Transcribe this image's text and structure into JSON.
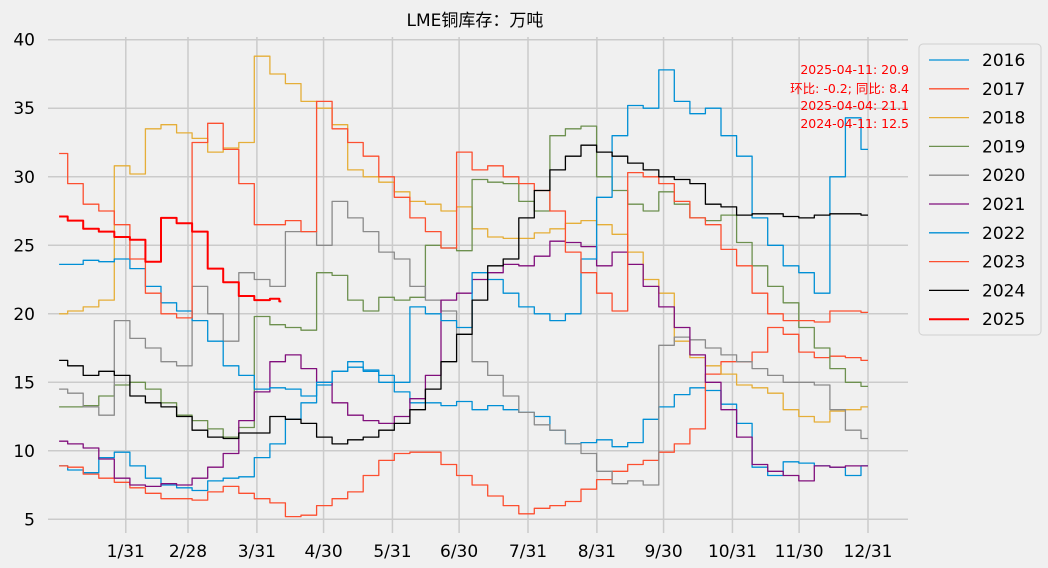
{
  "chart_data": {
    "type": "line",
    "title": "LME铜库存：万吨",
    "xlabel": "",
    "ylabel": "",
    "x_ticks": [
      {
        "label": "1/31",
        "day": 31
      },
      {
        "label": "2/28",
        "day": 59
      },
      {
        "label": "3/31",
        "day": 90
      },
      {
        "label": "4/30",
        "day": 120
      },
      {
        "label": "5/31",
        "day": 151
      },
      {
        "label": "6/30",
        "day": 181
      },
      {
        "label": "7/31",
        "day": 212
      },
      {
        "label": "8/31",
        "day": 243
      },
      {
        "label": "9/30",
        "day": 273
      },
      {
        "label": "10/31",
        "day": 304
      },
      {
        "label": "11/30",
        "day": 334
      },
      {
        "label": "12/31",
        "day": 365
      }
    ],
    "xlim": [
      -4,
      383
    ],
    "ylim": [
      4,
      40.2
    ],
    "y_ticks": [
      5,
      10,
      15,
      20,
      25,
      30,
      35,
      40
    ],
    "grid": true,
    "legend_position": "outside-right",
    "annotations": [
      "2025-04-11: 20.9",
      "环比: -0.2; 同比: 8.4",
      "2025-04-04: 21.1",
      "2024-04-11: 12.5"
    ],
    "annotation_color": "#ff0000",
    "series": [
      {
        "name": "2016",
        "color": "#008fd5",
        "width": 1.3,
        "x": [
          1,
          8,
          15,
          22,
          29,
          36,
          43,
          50,
          57,
          64,
          71,
          78,
          85,
          92,
          99,
          106,
          113,
          120,
          127,
          134,
          141,
          148,
          155,
          162,
          169,
          176,
          183,
          190,
          197,
          204,
          211,
          218,
          225,
          232,
          239,
          246,
          253,
          260,
          267,
          274,
          281,
          288,
          295,
          302,
          309,
          316,
          323,
          330,
          337,
          344,
          351,
          358,
          365
        ],
        "y": [
          8.9,
          8.6,
          8.4,
          9.5,
          9.9,
          8.9,
          8.0,
          7.5,
          7.3,
          7.1,
          7.8,
          8.0,
          8.1,
          9.5,
          10.5,
          12.3,
          13.5,
          14.8,
          15.8,
          16.5,
          15.9,
          15.0,
          14.3,
          13.5,
          13.5,
          13.3,
          13.6,
          13.0,
          13.3,
          13.0,
          12.8,
          12.5,
          11.5,
          10.5,
          10.6,
          10.8,
          10.3,
          10.6,
          12.3,
          13.2,
          14.1,
          14.6,
          14.4,
          13.4,
          12.0,
          8.8,
          8.2,
          9.2,
          9.1,
          8.9,
          8.8,
          8.2,
          8.9
        ]
      },
      {
        "name": "2017",
        "color": "#fc4f30",
        "width": 1.3,
        "x": [
          1,
          8,
          15,
          22,
          29,
          36,
          43,
          50,
          57,
          64,
          71,
          78,
          85,
          92,
          99,
          106,
          113,
          120,
          127,
          134,
          141,
          148,
          155,
          162,
          169,
          176,
          183,
          190,
          197,
          204,
          211,
          218,
          225,
          232,
          239,
          246,
          253,
          260,
          267,
          274,
          281,
          288,
          295,
          302,
          309,
          316,
          323,
          330,
          337,
          344,
          351,
          358,
          365
        ],
        "y": [
          8.9,
          8.8,
          8.3,
          8.0,
          7.7,
          7.3,
          6.9,
          6.5,
          6.5,
          6.4,
          7.0,
          7.4,
          6.9,
          6.5,
          6.2,
          5.2,
          5.3,
          6.0,
          6.5,
          7.0,
          8.2,
          9.3,
          9.8,
          9.9,
          9.9,
          9.0,
          8.2,
          7.5,
          6.7,
          6.0,
          5.4,
          5.8,
          6.0,
          6.3,
          7.2,
          7.9,
          8.5,
          9.0,
          9.3,
          9.9,
          10.5,
          11.6,
          15.6,
          16.5,
          16.5,
          17.2,
          19.0,
          18.5,
          17.2,
          16.8,
          16.9,
          16.8,
          16.6
        ]
      },
      {
        "name": "2018",
        "color": "#e5ae38",
        "width": 1.3,
        "x": [
          1,
          8,
          15,
          22,
          29,
          36,
          43,
          50,
          57,
          64,
          71,
          78,
          85,
          92,
          99,
          106,
          113,
          120,
          127,
          134,
          141,
          148,
          155,
          162,
          169,
          176,
          183,
          190,
          197,
          204,
          211,
          218,
          225,
          232,
          239,
          246,
          253,
          260,
          267,
          274,
          281,
          288,
          295,
          302,
          309,
          316,
          323,
          330,
          337,
          344,
          351,
          358,
          365
        ],
        "y": [
          20.0,
          20.2,
          20.5,
          21.0,
          30.8,
          30.2,
          33.5,
          33.8,
          33.2,
          32.8,
          31.8,
          32.1,
          32.5,
          38.8,
          37.5,
          36.8,
          35.5,
          35.0,
          33.8,
          30.5,
          30.0,
          29.6,
          28.9,
          28.2,
          28.0,
          27.5,
          27.8,
          26.2,
          25.6,
          25.5,
          25.5,
          25.9,
          26.2,
          26.6,
          26.8,
          26.5,
          25.8,
          24.5,
          22.5,
          21.5,
          18.0,
          16.8,
          16.2,
          15.6,
          14.8,
          14.6,
          14.2,
          13.0,
          12.5,
          12.1,
          12.9,
          13.0,
          13.2
        ]
      },
      {
        "name": "2019",
        "color": "#6d904f",
        "width": 1.3,
        "x": [
          1,
          8,
          15,
          22,
          29,
          36,
          43,
          50,
          57,
          64,
          71,
          78,
          85,
          92,
          99,
          106,
          113,
          120,
          127,
          134,
          141,
          148,
          155,
          162,
          169,
          176,
          183,
          190,
          197,
          204,
          211,
          218,
          225,
          232,
          239,
          246,
          253,
          260,
          267,
          274,
          281,
          288,
          295,
          302,
          309,
          316,
          323,
          330,
          337,
          344,
          351,
          358,
          365
        ],
        "y": [
          13.2,
          13.2,
          13.3,
          14.0,
          14.8,
          15.0,
          14.5,
          13.5,
          12.6,
          12.2,
          11.6,
          11.0,
          11.7,
          19.8,
          19.2,
          19.0,
          18.8,
          23.0,
          22.8,
          21.0,
          20.2,
          21.2,
          21.0,
          21.2,
          25.0,
          24.8,
          24.6,
          29.8,
          29.6,
          29.5,
          28.2,
          27.5,
          33.0,
          33.5,
          33.7,
          30.0,
          29.0,
          28.0,
          27.5,
          28.9,
          28.0,
          27.0,
          26.8,
          27.2,
          25.2,
          23.5,
          22.0,
          20.8,
          19.0,
          17.5,
          16.0,
          15.0,
          14.7
        ]
      },
      {
        "name": "2020",
        "color": "#8b8b8b",
        "width": 1.3,
        "x": [
          1,
          8,
          15,
          22,
          29,
          36,
          43,
          50,
          57,
          64,
          71,
          78,
          85,
          92,
          99,
          106,
          113,
          120,
          127,
          134,
          141,
          148,
          155,
          162,
          169,
          176,
          183,
          190,
          197,
          204,
          211,
          218,
          225,
          232,
          239,
          246,
          253,
          260,
          267,
          274,
          281,
          288,
          295,
          302,
          309,
          316,
          323,
          330,
          337,
          344,
          351,
          358,
          365
        ],
        "y": [
          14.5,
          14.2,
          13.2,
          12.6,
          19.5,
          18.2,
          17.5,
          16.5,
          16.2,
          22.0,
          20.0,
          18.0,
          23.0,
          22.5,
          22.0,
          26.0,
          26.0,
          25.0,
          28.2,
          27.0,
          26.0,
          24.5,
          24.0,
          22.0,
          21.0,
          20.2,
          18.5,
          16.5,
          15.5,
          14.0,
          12.8,
          11.9,
          11.5,
          10.5,
          9.8,
          8.5,
          7.6,
          7.8,
          7.5,
          17.7,
          18.3,
          18.1,
          17.5,
          17.0,
          16.5,
          16.0,
          15.5,
          15.0,
          15.0,
          14.8,
          13.0,
          11.5,
          10.9
        ]
      },
      {
        "name": "2021",
        "color": "#810f7c",
        "width": 1.3,
        "x": [
          1,
          8,
          15,
          22,
          29,
          36,
          43,
          50,
          57,
          64,
          71,
          78,
          85,
          92,
          99,
          106,
          113,
          120,
          127,
          134,
          141,
          148,
          155,
          162,
          169,
          176,
          183,
          190,
          197,
          204,
          211,
          218,
          225,
          232,
          239,
          246,
          253,
          260,
          267,
          274,
          281,
          288,
          295,
          302,
          309,
          316,
          323,
          330,
          337,
          344,
          351,
          358,
          365
        ],
        "y": [
          10.7,
          10.5,
          10.2,
          9.4,
          8.0,
          7.5,
          7.4,
          7.6,
          7.5,
          8.0,
          8.8,
          9.8,
          12.2,
          14.3,
          16.5,
          17.0,
          16.0,
          15.0,
          13.5,
          12.6,
          12.2,
          12.0,
          12.5,
          13.8,
          15.5,
          21.0,
          21.5,
          22.5,
          23.0,
          23.6,
          23.5,
          24.2,
          25.3,
          25.2,
          24.9,
          23.5,
          24.5,
          23.6,
          22.0,
          20.5,
          19.0,
          17.0,
          15.0,
          13.0,
          11.0,
          9.0,
          8.5,
          8.2,
          7.8,
          8.9,
          8.8,
          8.9,
          8.9
        ]
      },
      {
        "name": "2022",
        "color": "#008fd5",
        "width": 1.3,
        "x": [
          1,
          8,
          15,
          22,
          29,
          36,
          43,
          50,
          57,
          64,
          71,
          78,
          85,
          92,
          99,
          106,
          113,
          120,
          127,
          134,
          141,
          148,
          155,
          162,
          169,
          176,
          183,
          190,
          197,
          204,
          211,
          218,
          225,
          232,
          239,
          246,
          253,
          260,
          267,
          274,
          281,
          288,
          295,
          302,
          309,
          316,
          323,
          330,
          337,
          344,
          351,
          358,
          365
        ],
        "y": [
          23.6,
          23.6,
          23.9,
          23.8,
          24.0,
          23.3,
          22.0,
          20.8,
          20.2,
          19.5,
          18.0,
          16.2,
          15.5,
          14.5,
          14.6,
          14.5,
          14.0,
          15.0,
          15.8,
          16.1,
          15.8,
          15.5,
          15.0,
          20.5,
          20.0,
          19.5,
          19.0,
          23.0,
          22.5,
          21.5,
          20.5,
          20.0,
          19.5,
          20.0,
          24.0,
          28.5,
          33.0,
          35.2,
          35.0,
          37.8,
          35.5,
          34.6,
          35.0,
          33.0,
          31.5,
          27.0,
          25.0,
          23.5,
          23.0,
          21.5,
          30.0,
          34.3,
          32.0
        ]
      },
      {
        "name": "2023",
        "color": "#fc4f30",
        "width": 1.3,
        "x": [
          1,
          8,
          15,
          22,
          29,
          36,
          43,
          50,
          57,
          64,
          71,
          78,
          85,
          92,
          99,
          106,
          113,
          120,
          127,
          134,
          141,
          148,
          155,
          162,
          169,
          176,
          183,
          190,
          197,
          204,
          211,
          218,
          225,
          232,
          239,
          246,
          253,
          260,
          267,
          274,
          281,
          288,
          295,
          302,
          309,
          316,
          323,
          330,
          337,
          344,
          351,
          358,
          365
        ],
        "y": [
          31.7,
          29.5,
          28.0,
          27.5,
          26.5,
          24.0,
          21.5,
          20.0,
          19.7,
          32.5,
          33.9,
          32.0,
          29.5,
          26.5,
          26.5,
          26.8,
          26.0,
          35.5,
          33.5,
          32.5,
          31.5,
          30.0,
          28.5,
          27.0,
          26.0,
          24.8,
          31.8,
          30.5,
          30.8,
          30.0,
          29.5,
          29.0,
          27.5,
          24.5,
          23.0,
          21.5,
          20.2,
          30.3,
          30.0,
          29.5,
          28.2,
          27.0,
          26.5,
          24.7,
          23.5,
          21.5,
          20.0,
          19.5,
          19.5,
          19.4,
          20.2,
          20.2,
          20.1
        ]
      },
      {
        "name": "2024",
        "color": "#000000",
        "width": 1.3,
        "x": [
          1,
          8,
          15,
          22,
          29,
          36,
          43,
          50,
          57,
          64,
          71,
          78,
          85,
          92,
          99,
          106,
          113,
          120,
          127,
          134,
          141,
          148,
          155,
          162,
          169,
          176,
          183,
          190,
          197,
          204,
          211,
          218,
          225,
          232,
          239,
          246,
          253,
          260,
          267,
          274,
          281,
          288,
          295,
          302,
          309,
          316,
          323,
          330,
          337,
          344,
          351,
          358,
          365
        ],
        "y": [
          16.6,
          16.2,
          15.5,
          15.8,
          15.5,
          14.0,
          13.5,
          13.2,
          12.5,
          11.5,
          11.0,
          10.9,
          11.3,
          11.3,
          12.5,
          12.3,
          12.0,
          11.0,
          10.5,
          10.8,
          11.0,
          11.5,
          12.0,
          13.0,
          14.5,
          16.5,
          18.5,
          21.0,
          23.5,
          24.0,
          27.0,
          29.0,
          30.5,
          31.5,
          32.3,
          31.8,
          31.5,
          31.0,
          30.5,
          30.0,
          29.8,
          29.5,
          28.0,
          27.8,
          27.2,
          27.3,
          27.3,
          27.1,
          27.0,
          27.2,
          27.3,
          27.3,
          27.2
        ]
      },
      {
        "name": "2025",
        "color": "#ff0000",
        "width": 2.0,
        "x": [
          1,
          8,
          15,
          22,
          29,
          36,
          43,
          50,
          57,
          64,
          71,
          78,
          85,
          92,
          99,
          101
        ],
        "y": [
          27.1,
          26.8,
          26.2,
          26.0,
          25.6,
          25.4,
          23.8,
          27.0,
          26.6,
          26.0,
          23.3,
          22.3,
          21.3,
          21.0,
          21.1,
          20.9
        ]
      }
    ]
  }
}
